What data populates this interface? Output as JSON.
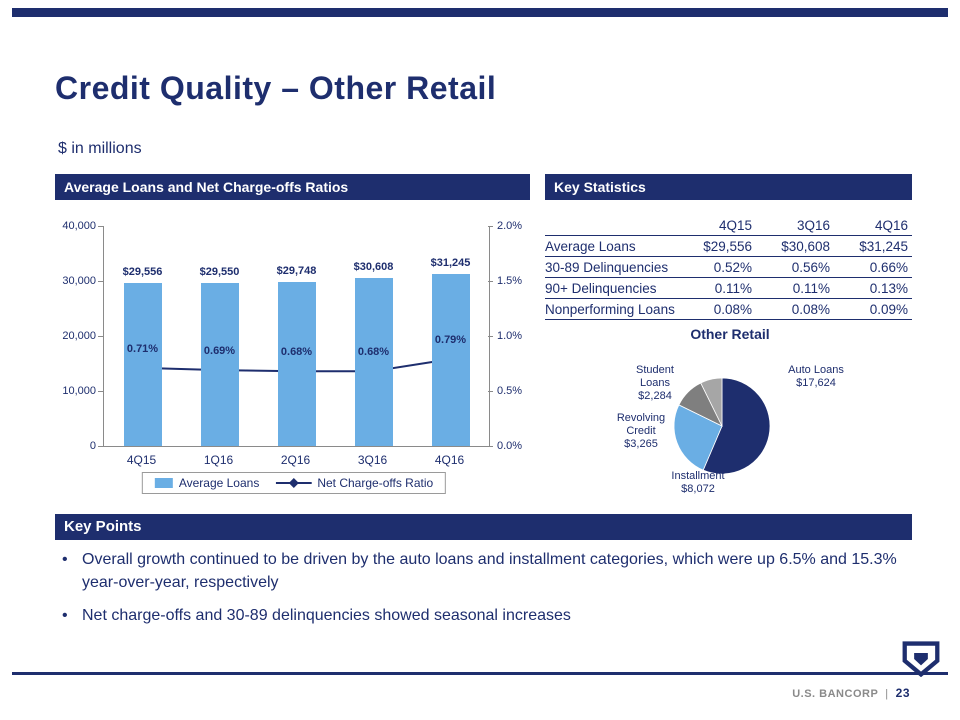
{
  "slide": {
    "title": "Credit Quality – Other Retail",
    "subtitle": "$ in millions",
    "left_section_header": "Average Loans and Net Charge-offs Ratios",
    "right_section_header": "Key Statistics",
    "key_points_header": "Key Points",
    "key_points": [
      "Overall growth continued to be driven by the auto loans and installment categories, which were up 6.5% and 15.3% year-over-year, respectively",
      "Net charge-offs and 30-89 delinquencies showed seasonal increases"
    ],
    "footer": {
      "brand": "U.S. BANCORP",
      "separator": "|",
      "page": "23"
    }
  },
  "colors": {
    "navy": "#1E2E6E",
    "light_blue": "#6AAEE4",
    "gray": "#7F7F7F",
    "light_gray": "#A6A6A6"
  },
  "key_statistics": {
    "headers": [
      "",
      "4Q15",
      "3Q16",
      "4Q16"
    ],
    "rows": [
      [
        "Average Loans",
        "$29,556",
        "$30,608",
        "$31,245"
      ],
      [
        "30-89 Delinquencies",
        "0.52%",
        "0.56%",
        "0.66%"
      ],
      [
        "90+ Delinquencies",
        "0.11%",
        "0.11%",
        "0.13%"
      ],
      [
        "Nonperforming Loans",
        "0.08%",
        "0.08%",
        "0.09%"
      ]
    ]
  },
  "chart_data": [
    {
      "type": "bar",
      "title": "Average Loans and Net Charge-offs Ratios",
      "categories": [
        "4Q15",
        "1Q16",
        "2Q16",
        "3Q16",
        "4Q16"
      ],
      "series": [
        {
          "name": "Average Loans",
          "kind": "bar",
          "axis": "left",
          "values": [
            29556,
            29550,
            29748,
            30608,
            31245
          ],
          "labels": [
            "$29,556",
            "$29,550",
            "$29,748",
            "$30,608",
            "$31,245"
          ],
          "color": "#6AAEE4"
        },
        {
          "name": "Net Charge-offs Ratio",
          "kind": "line",
          "axis": "right",
          "values": [
            0.71,
            0.69,
            0.68,
            0.68,
            0.79
          ],
          "labels": [
            "0.71%",
            "0.69%",
            "0.68%",
            "0.68%",
            "0.79%"
          ],
          "color": "#1E2E6E"
        }
      ],
      "left_axis": {
        "min": 0,
        "max": 40000,
        "tick_labels": [
          "40,000",
          "30,000",
          "20,000",
          "10,000",
          "0"
        ]
      },
      "right_axis": {
        "min": 0,
        "max": 2.0,
        "tick_labels": [
          "2.0%",
          "1.5%",
          "1.0%",
          "0.5%",
          "0.0%"
        ]
      },
      "legend": [
        "Average Loans",
        "Net Charge-offs Ratio"
      ],
      "legend_position": "bottom",
      "grid": false
    },
    {
      "type": "pie",
      "title": "Other Retail",
      "slices": [
        {
          "label": "Auto Loans",
          "value": 17624,
          "value_label": "$17,624",
          "color": "#1E2E6E"
        },
        {
          "label": "Installment",
          "value": 8072,
          "value_label": "$8,072",
          "color": "#6AAEE4"
        },
        {
          "label": "Revolving Credit",
          "value": 3265,
          "value_label": "$3,265",
          "color": "#7F7F7F"
        },
        {
          "label": "Student Loans",
          "value": 2284,
          "value_label": "$2,284",
          "color": "#A6A6A6"
        }
      ]
    }
  ]
}
